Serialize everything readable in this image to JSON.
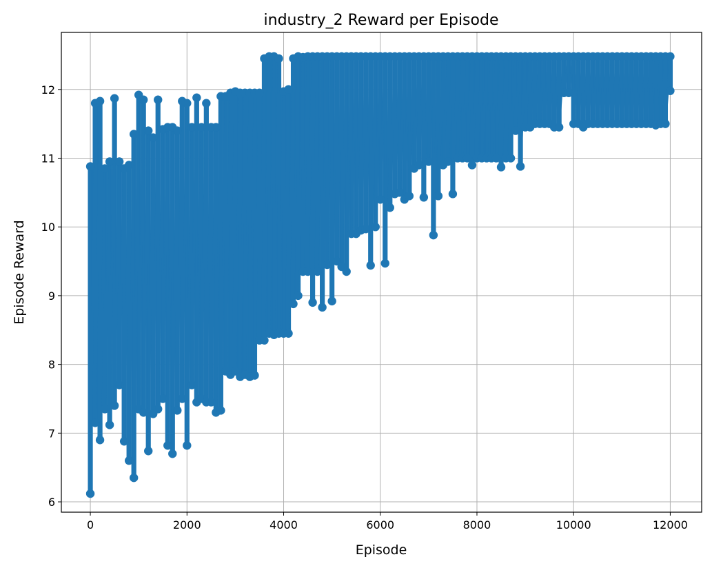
{
  "chart_data": {
    "type": "line",
    "title": "industry_2 Reward per Episode",
    "xlabel": "Episode",
    "ylabel": "Episode Reward",
    "xlim": [
      -600,
      12650
    ],
    "ylim": [
      5.85,
      12.83
    ],
    "xticks": [
      0,
      2000,
      4000,
      6000,
      8000,
      10000,
      12000
    ],
    "yticks": [
      6,
      7,
      8,
      9,
      10,
      11,
      12
    ],
    "grid": true,
    "marker": "circle",
    "color": "#1f77b4",
    "series": [
      {
        "x": [
          0,
          100,
          200,
          300,
          400,
          500,
          600,
          700,
          800,
          900,
          1000,
          1100,
          1200,
          1300,
          1400,
          1500,
          1600,
          1700,
          1800,
          1900,
          2000,
          2100,
          2200,
          2300,
          2400,
          2500,
          2600,
          2700,
          2800,
          2900,
          3000,
          3100,
          3200,
          3300,
          3400,
          3500,
          3600,
          3700,
          3800,
          3900,
          4000,
          4100,
          4200,
          4300,
          4400,
          4500,
          4600,
          4700,
          4800,
          4900,
          5000,
          5100,
          5200,
          5300,
          5400,
          5500,
          5600,
          5700,
          5800,
          5900,
          6000,
          6100,
          6200,
          6300,
          6400,
          6500,
          6600,
          6700,
          6800,
          6900,
          7000,
          7100,
          7200,
          7300,
          7400,
          7500,
          7600,
          7700,
          7800,
          7900,
          8000,
          8100,
          8200,
          8300,
          8400,
          8500,
          8600,
          8700,
          8800,
          8900,
          9000,
          9100,
          9200,
          9300,
          9400,
          9500,
          9600,
          9700,
          9800,
          9900,
          10000,
          10100,
          10200,
          10300,
          10400,
          10500,
          10600,
          10700,
          10800,
          10900,
          11000,
          11100,
          11200,
          11300,
          11400,
          11500,
          11600,
          11700,
          11800,
          11900,
          12000
        ],
        "low": [
          6.12,
          7.15,
          6.9,
          7.35,
          7.12,
          7.4,
          7.7,
          6.88,
          6.6,
          6.35,
          7.35,
          7.3,
          6.74,
          7.28,
          7.35,
          7.5,
          6.82,
          6.7,
          7.33,
          7.5,
          6.82,
          7.7,
          7.45,
          7.5,
          7.45,
          7.45,
          7.3,
          7.33,
          7.9,
          7.85,
          7.9,
          7.82,
          7.85,
          7.82,
          7.84,
          8.35,
          8.35,
          8.45,
          8.43,
          8.45,
          8.45,
          8.45,
          8.88,
          9.0,
          9.35,
          9.35,
          8.9,
          9.35,
          8.83,
          9.45,
          8.92,
          9.5,
          9.42,
          9.35,
          9.9,
          9.9,
          9.95,
          9.97,
          9.44,
          10.0,
          10.4,
          9.47,
          10.28,
          10.48,
          10.5,
          10.4,
          10.45,
          10.85,
          10.9,
          10.43,
          10.95,
          9.88,
          10.45,
          10.9,
          10.95,
          10.48,
          11.0,
          11.0,
          11.0,
          10.9,
          11.0,
          11.0,
          11.0,
          11.0,
          11.0,
          10.87,
          11.0,
          11.0,
          11.4,
          10.88,
          11.45,
          11.45,
          11.5,
          11.5,
          11.5,
          11.5,
          11.45,
          11.45,
          11.95,
          11.95,
          11.5,
          11.5,
          11.45,
          11.5,
          11.5,
          11.5,
          11.5,
          11.5,
          11.5,
          11.5,
          11.5,
          11.5,
          11.5,
          11.5,
          11.5,
          11.5,
          11.5,
          11.48,
          11.5,
          11.5,
          11.98
        ],
        "high": [
          10.88,
          11.8,
          11.83,
          10.85,
          10.95,
          11.87,
          10.95,
          10.85,
          10.9,
          11.35,
          11.92,
          11.85,
          11.4,
          11.3,
          11.85,
          11.42,
          11.45,
          11.45,
          11.4,
          11.83,
          11.8,
          11.45,
          11.88,
          11.45,
          11.8,
          11.45,
          11.45,
          11.9,
          11.9,
          11.95,
          11.97,
          11.95,
          11.95,
          11.95,
          11.95,
          11.95,
          12.45,
          12.48,
          12.48,
          12.45,
          11.97,
          12.0,
          12.45,
          12.48,
          12.47,
          12.48,
          12.48,
          12.48,
          12.48,
          12.48,
          12.48,
          12.48,
          12.48,
          12.48,
          12.48,
          12.48,
          12.48,
          12.48,
          12.48,
          12.48,
          12.48,
          12.48,
          12.48,
          12.48,
          12.48,
          12.48,
          12.48,
          12.48,
          12.48,
          12.48,
          12.48,
          12.48,
          12.48,
          12.48,
          12.48,
          12.48,
          12.48,
          12.48,
          12.48,
          12.48,
          12.48,
          12.48,
          12.48,
          12.48,
          12.48,
          12.48,
          12.48,
          12.48,
          12.48,
          12.48,
          12.48,
          12.48,
          12.48,
          12.48,
          12.48,
          12.48,
          12.48,
          12.48,
          12.48,
          12.48,
          12.48,
          12.48,
          12.48,
          12.48,
          12.48,
          12.48,
          12.48,
          12.48,
          12.48,
          12.48,
          12.48,
          12.48,
          12.48,
          12.48,
          12.48,
          12.48,
          12.48,
          12.48,
          12.48,
          12.48,
          12.48
        ]
      }
    ]
  }
}
